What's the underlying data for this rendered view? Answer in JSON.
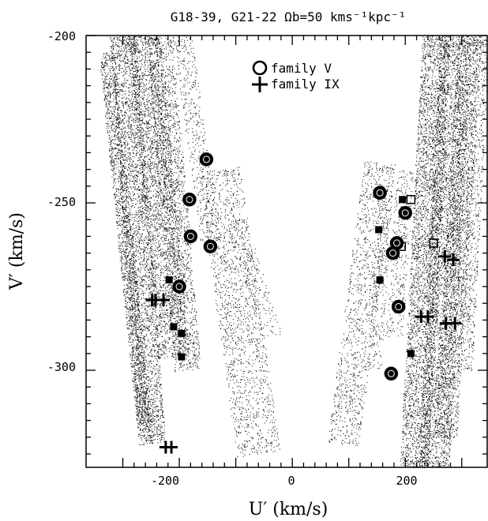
{
  "chart_data": {
    "type": "scatter",
    "title": "G18-39, G21-22   Ωb=50 kms⁻¹kpc⁻¹",
    "xlabel": "U′ (km/s)",
    "ylabel": "V′ (km/s)",
    "xlim": [
      -365,
      345
    ],
    "ylim": [
      -329,
      -200
    ],
    "xticks": [
      -200,
      0,
      200
    ],
    "yticks": [
      -200,
      -250,
      -300
    ],
    "grid": false,
    "legend_position": "top-center",
    "background_streams": [
      {
        "u0": -330,
        "v0": -205,
        "u1": -262,
        "v1": -318,
        "width": 18,
        "density": 0.9
      },
      {
        "u0": -300,
        "v0": -200,
        "u1": -248,
        "v1": -322,
        "width": 34,
        "density": 0.8
      },
      {
        "u0": -262,
        "v0": -200,
        "u1": -210,
        "v1": -296,
        "width": 40,
        "density": 0.75
      },
      {
        "u0": -235,
        "v0": -200,
        "u1": -185,
        "v1": -300,
        "width": 34,
        "density": 0.5
      },
      {
        "u0": -195,
        "v0": -200,
        "u1": -145,
        "v1": -262,
        "width": 24,
        "density": 0.3
      },
      {
        "u0": -130,
        "v0": -240,
        "u1": -60,
        "v1": -325,
        "width": 55,
        "density": 0.35
      },
      {
        "u0": -100,
        "v0": -255,
        "u1": -35,
        "v1": -290,
        "width": 25,
        "density": 0.2
      },
      {
        "u0": 155,
        "v0": -238,
        "u1": 90,
        "v1": -322,
        "width": 40,
        "density": 0.35
      },
      {
        "u0": 165,
        "v0": -245,
        "u1": 145,
        "v1": -300,
        "width": 18,
        "density": 0.3
      },
      {
        "u0": 200,
        "v0": -240,
        "u1": 180,
        "v1": -290,
        "width": 22,
        "density": 0.3
      },
      {
        "u0": 255,
        "v0": -200,
        "u1": 215,
        "v1": -330,
        "width": 36,
        "density": 0.8
      },
      {
        "u0": 290,
        "v0": -200,
        "u1": 250,
        "v1": -330,
        "width": 40,
        "density": 0.75
      },
      {
        "u0": 315,
        "v0": -200,
        "u1": 270,
        "v1": -320,
        "width": 30,
        "density": 0.55
      },
      {
        "u0": 335,
        "v0": -200,
        "u1": 305,
        "v1": -300,
        "width": 20,
        "density": 0.4
      }
    ],
    "series": [
      {
        "name": "family V",
        "marker": "circle",
        "points": [
          [
            -152,
            -237
          ],
          [
            -182,
            -249
          ],
          [
            -180,
            -260
          ],
          [
            -145,
            -263
          ],
          [
            -200,
            -275
          ],
          [
            155,
            -247
          ],
          [
            200,
            -253
          ],
          [
            185,
            -262
          ],
          [
            178,
            -265
          ],
          [
            188,
            -281
          ],
          [
            175,
            -301
          ]
        ]
      },
      {
        "name": "family IX",
        "marker": "plus",
        "points": [
          [
            -248,
            -279
          ],
          [
            -242,
            -279
          ],
          [
            -228,
            -279
          ],
          [
            -224,
            -323
          ],
          [
            -214,
            -323
          ],
          [
            228,
            -284
          ],
          [
            240,
            -284
          ],
          [
            270,
            -266
          ],
          [
            285,
            -267
          ],
          [
            272,
            -286
          ],
          [
            288,
            -286
          ]
        ]
      }
    ],
    "extra_markers": {
      "filled_squares": [
        [
          -218,
          -273
        ],
        [
          -210,
          -287
        ],
        [
          -196,
          -289
        ],
        [
          -196,
          -296
        ],
        [
          153,
          -258
        ],
        [
          155,
          -273
        ],
        [
          210,
          -295
        ],
        [
          195,
          -249
        ]
      ],
      "open_squares": [
        [
          193,
          -263
        ],
        [
          210,
          -249
        ],
        [
          250,
          -262
        ]
      ]
    }
  },
  "legend": {
    "circle_label": "family V",
    "plus_label": "family IX"
  },
  "axes": {
    "x_tick_labels": [
      "-200",
      "0",
      "200"
    ],
    "y_tick_labels": [
      "-200",
      "-250",
      "-300"
    ]
  }
}
